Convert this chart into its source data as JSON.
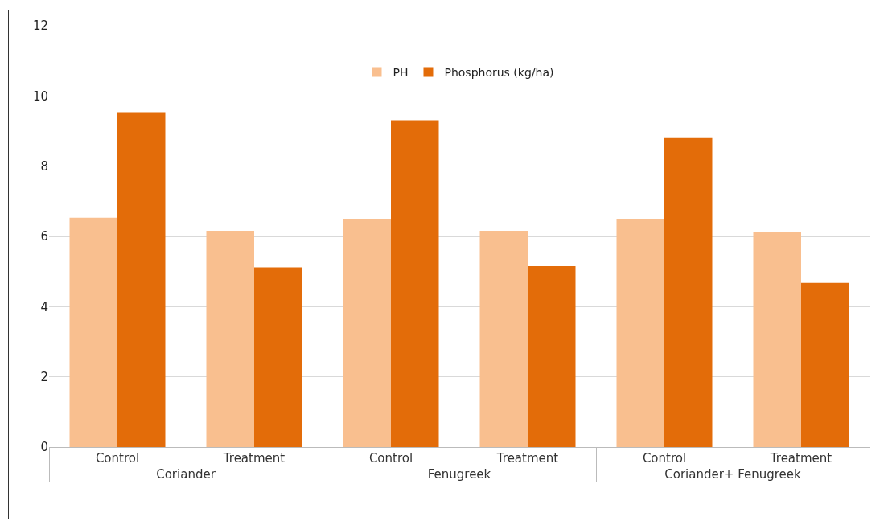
{
  "chart_data": {
    "type": "bar",
    "categories": [
      "Control",
      "Treatment",
      "Control",
      "Treatment",
      "Control",
      "Treatment"
    ],
    "annotations": [
      "Coriander",
      "Fenugreek",
      "Coriander+ Fenugreek"
    ],
    "series": [
      {
        "name": "PH",
        "color": "#f9bf8f",
        "values": [
          6.53,
          6.16,
          6.5,
          6.16,
          6.5,
          6.14
        ]
      },
      {
        "name": "Phosphorus (kg/ha)",
        "color": "#e36c09",
        "values": [
          9.54,
          5.12,
          9.31,
          5.15,
          8.8,
          4.68
        ]
      }
    ],
    "ylim": [
      0,
      12
    ],
    "yticks": [
      0,
      2,
      4,
      6,
      8,
      10,
      12
    ],
    "grid": "y",
    "legend": "top"
  }
}
